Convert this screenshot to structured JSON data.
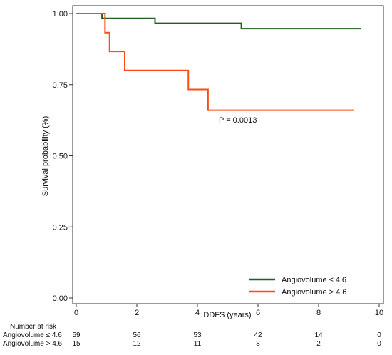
{
  "chart_data": {
    "type": "line",
    "subtype": "kaplan-meier",
    "xlabel": "DDFS (years)",
    "ylabel": "Survival probability (%)",
    "xlim": [
      0,
      10
    ],
    "ylim": [
      0,
      1
    ],
    "xticks": [
      0,
      2,
      4,
      6,
      8,
      10
    ],
    "yticks": [
      "0.00",
      "0.25",
      "0.50",
      "0.75",
      "1.00"
    ],
    "grid": false,
    "legend_position": "bottom-right",
    "annotation": "P = 0.0013",
    "series": [
      {
        "name": "Angiovolume ≤ 4.6",
        "color": "#1f5f1f",
        "steps": [
          [
            0,
            1.0
          ],
          [
            0.85,
            0.983
          ],
          [
            2.6,
            0.966
          ],
          [
            5.45,
            0.947
          ],
          [
            9.4,
            0.947
          ]
        ]
      },
      {
        "name": "Angiovolume > 4.6",
        "color": "#ff4c14",
        "steps": [
          [
            0,
            1.0
          ],
          [
            0.95,
            0.933
          ],
          [
            1.1,
            0.867
          ],
          [
            1.6,
            0.8
          ],
          [
            3.7,
            0.733
          ],
          [
            4.35,
            0.66
          ],
          [
            9.15,
            0.66
          ]
        ]
      }
    ],
    "risk_table": {
      "title": "Number at risk",
      "times": [
        0,
        2,
        4,
        6,
        8,
        10
      ],
      "rows": [
        {
          "label": "Angiovolume ≤ 4.6",
          "values": [
            "59",
            "56",
            "53",
            "42",
            "14",
            "0"
          ]
        },
        {
          "label": "Angiovolume > 4.6",
          "values": [
            "15",
            "12",
            "11",
            "8",
            "2",
            "0"
          ]
        }
      ]
    }
  }
}
